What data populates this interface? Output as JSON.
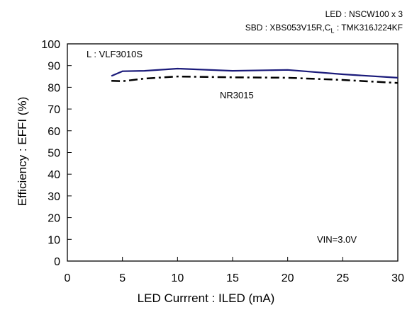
{
  "chart_data": {
    "type": "line",
    "xlabel": "LED Currrent : ILED (mA)",
    "ylabel": "Efficiency : EFFI (%)",
    "xlim": [
      0,
      30
    ],
    "ylim": [
      0,
      100
    ],
    "x_ticks": [
      0,
      5,
      10,
      15,
      20,
      25,
      30
    ],
    "y_ticks": [
      0,
      10,
      20,
      30,
      40,
      50,
      60,
      70,
      80,
      90,
      100
    ],
    "grid": false,
    "series": [
      {
        "name": "L : VLF3010S",
        "color": "#1a1a7a",
        "style": "solid",
        "x": [
          4,
          5,
          7,
          10,
          15,
          20,
          25,
          30
        ],
        "y": [
          85.2,
          87.4,
          87.6,
          88.6,
          87.6,
          88.0,
          86.0,
          84.4
        ]
      },
      {
        "name": "NR3015",
        "color": "#000000",
        "style": "dash-dot",
        "x": [
          4,
          5,
          7,
          10,
          15,
          20,
          25,
          30
        ],
        "y": [
          83.0,
          82.8,
          84.0,
          85.0,
          84.6,
          84.4,
          83.4,
          82.0
        ]
      }
    ],
    "annotations": {
      "led": "LED : NSCW100 x 3",
      "sbd_prefix": "SBD : XBS053V15R,C",
      "sbd_sub": "L",
      "sbd_suffix": " : TMK316J224KF",
      "vin": "VIN=3.0V"
    }
  }
}
